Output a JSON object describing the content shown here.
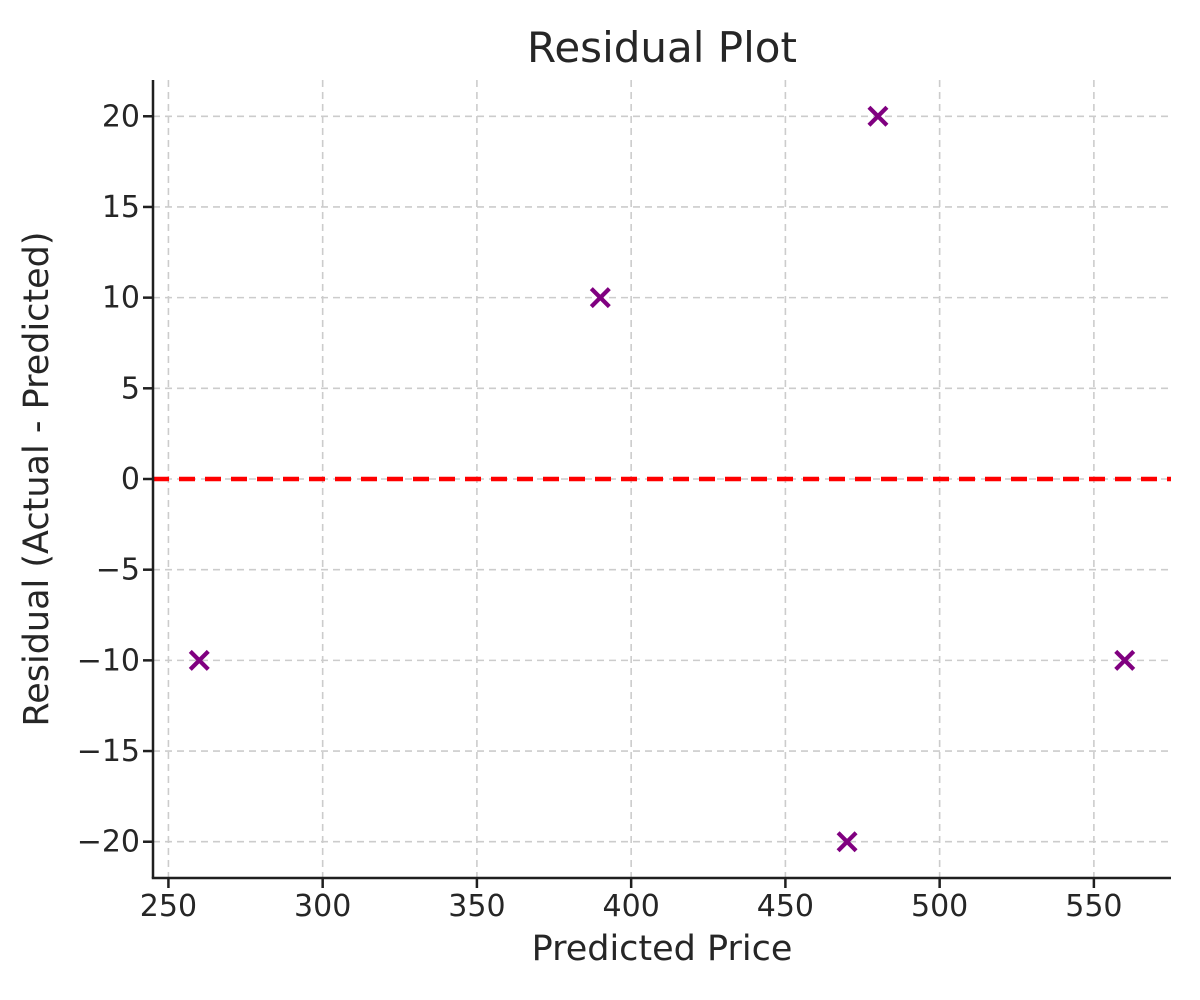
{
  "chart_data": {
    "type": "scatter",
    "title": "Residual Plot",
    "xlabel": "Predicted Price",
    "ylabel": "Residual (Actual - Predicted)",
    "xlim": [
      245,
      575
    ],
    "ylim": [
      -22,
      22
    ],
    "x_ticks": [
      250,
      300,
      350,
      400,
      450,
      500,
      550
    ],
    "x_tick_labels": [
      "250",
      "300",
      "350",
      "400",
      "450",
      "500",
      "550"
    ],
    "y_ticks": [
      -20,
      -15,
      -10,
      -5,
      0,
      5,
      10,
      15,
      20
    ],
    "y_tick_labels": [
      "−20",
      "−15",
      "−10",
      "−5",
      "0",
      "5",
      "10",
      "15",
      "20"
    ],
    "grid": true,
    "legend": "none",
    "points": [
      {
        "x": 260,
        "y": -10
      },
      {
        "x": 390,
        "y": 10
      },
      {
        "x": 470,
        "y": -20
      },
      {
        "x": 480,
        "y": 20
      },
      {
        "x": 560,
        "y": -10
      }
    ],
    "marker": "x",
    "marker_color": "#800080",
    "zero_line": {
      "y": 0,
      "color": "#ff0000",
      "style": "dashed"
    },
    "grid_color": "#cccccc",
    "spine_color": "#1f1f1f",
    "text_color": "#262626",
    "background": "#ffffff"
  }
}
